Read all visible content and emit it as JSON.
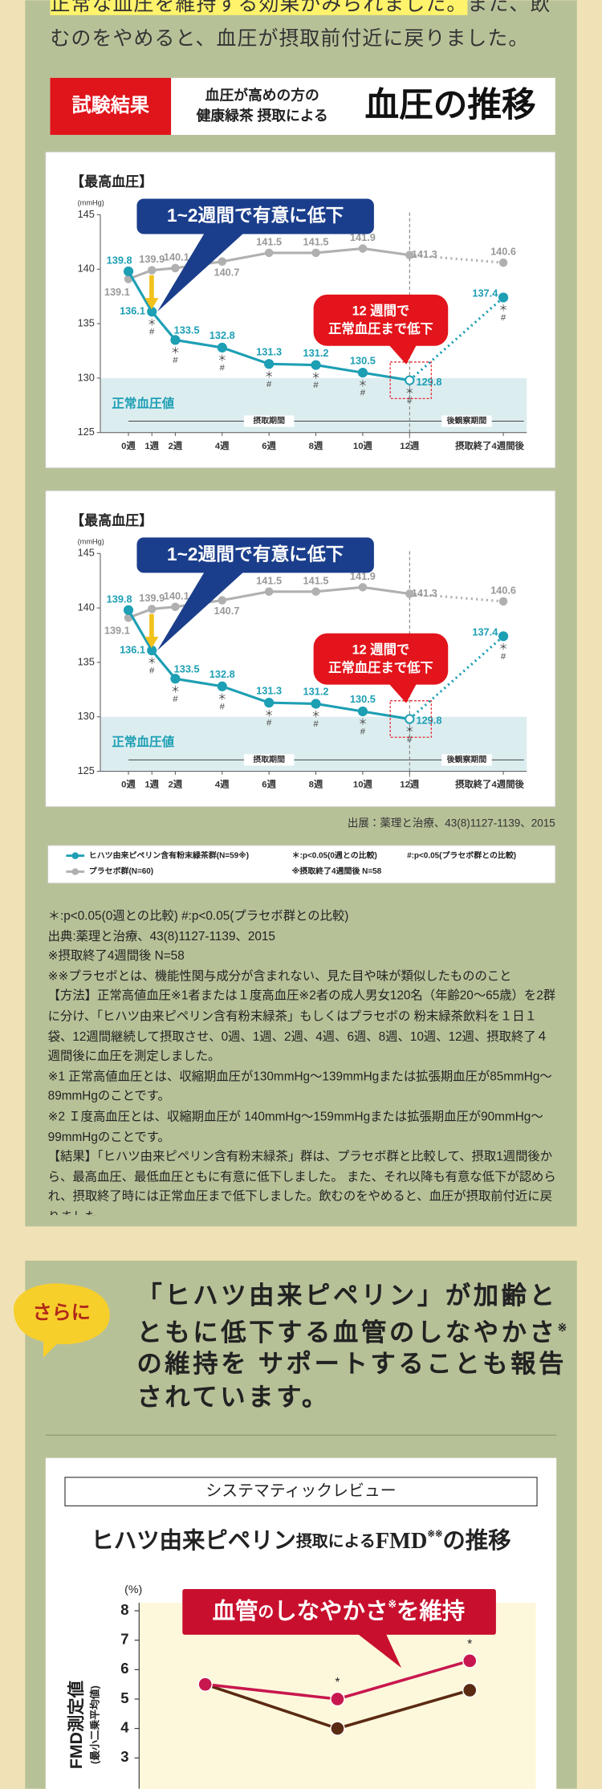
{
  "intro": [
    "正常な血圧を維持する効果がみられました。",
    "また、飲むのをやめると、血圧が摂取前付近に戻りました。"
  ],
  "result_banner": {
    "label": "試験結果",
    "subtitle": [
      "血圧が高めの方の",
      "健康緑茶 摂取による"
    ],
    "title": "血圧の推移"
  },
  "chart_data": [
    {
      "type": "line",
      "title": "【最高血圧】",
      "yunit": "(mmHg)",
      "x": [
        0,
        1,
        2,
        4,
        6,
        8,
        10,
        12,
        16
      ],
      "xticks": [
        {
          "value": 0,
          "label": "0週"
        },
        {
          "value": 1,
          "label": "1週"
        },
        {
          "value": 2,
          "label": "2週"
        },
        {
          "value": 4,
          "label": "4週"
        },
        {
          "value": 6,
          "label": "6週"
        },
        {
          "value": 8,
          "label": "8週"
        },
        {
          "value": 10,
          "label": "10週"
        },
        {
          "value": 12,
          "label": "12週"
        },
        {
          "value": 16,
          "label": "摂取終了4週間後"
        }
      ],
      "xlim": [
        -1.2,
        17
      ],
      "ylim": [
        125,
        145
      ],
      "yticks": [
        125,
        130,
        135,
        140,
        145
      ],
      "series": [
        {
          "name": "ヒハツ由来ピペリン含有粉末緑茶群(N=59※)",
          "color": "#1d9fb4",
          "values": [
            139.8,
            136.1,
            133.5,
            132.8,
            131.3,
            131.2,
            130.5,
            129.8,
            137.4
          ],
          "significance": [
            null,
            [
              "＊",
              "#"
            ],
            [
              "＊",
              "#"
            ],
            [
              "＊",
              "#"
            ],
            [
              "＊",
              "#"
            ],
            [
              "＊",
              "#"
            ],
            [
              "＊",
              "#"
            ],
            [
              "＊",
              "#"
            ],
            [
              "＊",
              "#"
            ]
          ]
        },
        {
          "name": "プラセボ群(N=60)",
          "color": "#b0b0b0",
          "values": [
            139.1,
            139.9,
            140.1,
            140.7,
            141.5,
            141.5,
            141.9,
            141.3,
            140.6
          ]
        }
      ],
      "normal_range": {
        "label": "正常血圧値",
        "range": [
          125,
          130
        ]
      },
      "periods": [
        {
          "label": "摂取期間",
          "range": [
            0,
            12
          ]
        },
        {
          "label": "後観察期間",
          "range": [
            12,
            16
          ]
        }
      ],
      "callout_decline": "1~2週間で有意に低下",
      "callout_normal": [
        "12 週間で",
        "正常血圧まで低下"
      ]
    },
    {
      "type": "line",
      "title": "【最高血圧】",
      "yunit": "(mmHg)",
      "x": [
        0,
        1,
        2,
        4,
        6,
        8,
        10,
        12,
        16
      ],
      "xticks": [
        {
          "value": 0,
          "label": "0週"
        },
        {
          "value": 1,
          "label": "1週"
        },
        {
          "value": 2,
          "label": "2週"
        },
        {
          "value": 4,
          "label": "4週"
        },
        {
          "value": 6,
          "label": "6週"
        },
        {
          "value": 8,
          "label": "8週"
        },
        {
          "value": 10,
          "label": "10週"
        },
        {
          "value": 12,
          "label": "12週"
        },
        {
          "value": 16,
          "label": "摂取終了4週間後"
        }
      ],
      "xlim": [
        -1.2,
        17
      ],
      "ylim": [
        125,
        145
      ],
      "yticks": [
        125,
        130,
        135,
        140,
        145
      ],
      "series": [
        {
          "color": "#1d9fb4",
          "values": [
            139.8,
            136.1,
            133.5,
            132.8,
            131.3,
            131.2,
            130.5,
            129.8,
            137.4
          ],
          "significance": [
            null,
            [
              "＊",
              "#"
            ],
            [
              "＊",
              "#"
            ],
            [
              "＊",
              "#"
            ],
            [
              "＊",
              "#"
            ],
            [
              "＊",
              "#"
            ],
            [
              "＊",
              "#"
            ],
            [
              "＊",
              "#"
            ],
            [
              "＊",
              "#"
            ]
          ]
        },
        {
          "color": "#b0b0b0",
          "values": [
            139.1,
            139.9,
            140.1,
            140.7,
            141.5,
            141.5,
            141.9,
            141.3,
            140.6
          ]
        }
      ],
      "normal_range": {
        "label": "正常血圧値",
        "range": [
          125,
          130
        ]
      },
      "periods": [
        {
          "label": "摂取期間",
          "range": [
            0,
            12
          ]
        },
        {
          "label": "後観察期間",
          "range": [
            12,
            16
          ]
        }
      ],
      "callout_decline": "1~2週間で有意に低下",
      "callout_normal": [
        "12 週間で",
        "正常血圧まで低下"
      ]
    },
    {
      "type": "line",
      "title": [
        "ヒハツ由来ピペリン",
        "摂取による",
        "FMD",
        "※※",
        "の推移"
      ],
      "ylabel": "FMD測定値",
      "ylabel_note": "(最小二乗平均値)",
      "yunit": "(%)",
      "categories": [
        null,
        null,
        null
      ],
      "ylim": [
        3,
        8
      ],
      "yticks": [
        3,
        4,
        5,
        6,
        7,
        8
      ],
      "series": [
        {
          "color": "#5b2a12",
          "values": [
            5.5,
            4.0,
            5.3
          ]
        },
        {
          "color": "#c8174e",
          "values": [
            5.5,
            5.0,
            6.3
          ],
          "significance": [
            null,
            "*",
            "*"
          ]
        }
      ],
      "annotation": [
        "血管",
        "の",
        "しなやかさ",
        "※",
        "を維持"
      ]
    }
  ],
  "source": "出展：薬理と治療、43(8)1127-1139、2015",
  "legend_notes": [
    "＊:p<0.05(0週との比較)",
    "#:p<0.05(プラセボ群との比較)",
    "※摂取終了4週間後 N=58"
  ],
  "notes": [
    "＊:p<0.05(0週との比較) #:p<0.05(プラセボ群との比較)",
    "出典:薬理と治療、43(8)1127-1139、2015",
    "※摂取終了4週間後 N=58",
    "※※プラセボとは、機能性関与成分が含まれない、見た目や味が類似したもののこと",
    "【方法】正常高値血圧※1者または１度高血圧※2者の成人男女120名（年齢20〜65歳）を2群に分け、「ヒハツ由来ピペリン含有粉末緑茶」もしくはプラセボの 粉末緑茶飲料を１日１袋、12週間継続して摂取させ、0週、1週、2週、4週、6週、8週、10週、12週、摂取終了４週間後に血圧を測定しました。",
    "※1 正常高値血圧とは、収縮期血圧が130mmHg〜139mmHgまたは拡張期血圧が85mmHg〜89mmHgのことです。",
    "※2 Ｉ度高血圧とは、収縮期血圧が 140mmHg〜159mmHgまたは拡張期血圧が90mmHg〜99mmHgのことです。",
    "【結果】「ヒハツ由来ピペリン含有粉末緑茶」群は、プラセボ群と比較して、摂取1週間後から、最高血圧、最低血圧ともに有意に低下しました。 また、それ以降も有意な低下が認められ、摂取終了時には正常血圧まで低下しました。飲むのをやめると、血圧が摂取前付近に戻りました。"
  ],
  "highlight": {
    "badge": "さらに",
    "text": [
      "「ヒハツ由来ピペリン」が加齢とともに低下する血管のしなやかさ",
      "※",
      "の維持を サポートすることも報告されています。"
    ]
  },
  "review": {
    "label": "システマティックレビュー"
  }
}
